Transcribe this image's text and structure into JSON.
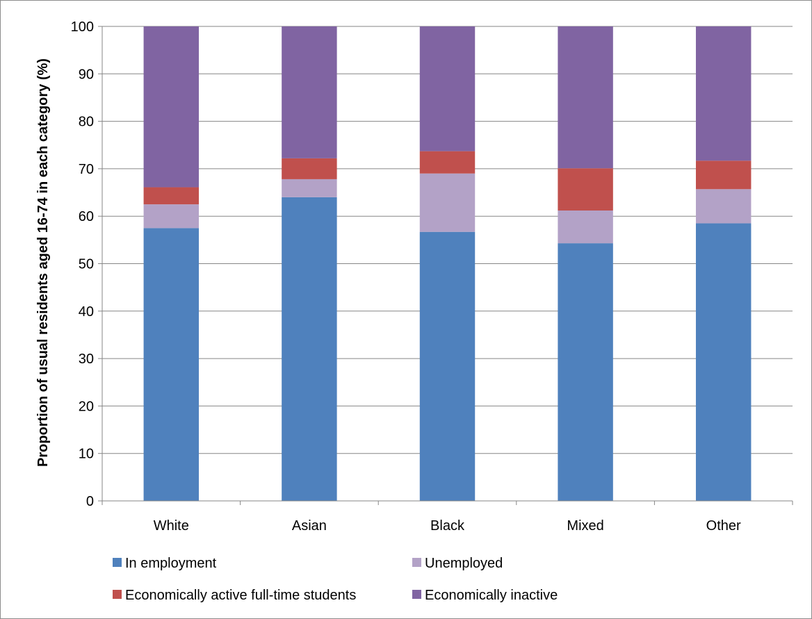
{
  "chart_data": {
    "type": "bar",
    "stacked": true,
    "title": "",
    "xlabel": "",
    "ylabel": "Proportion of usual residents aged 16-74 in each category (%)",
    "ylim": [
      0,
      100
    ],
    "yticks": [
      "0",
      "10",
      "20",
      "30",
      "40",
      "50",
      "60",
      "70",
      "80",
      "90",
      "100"
    ],
    "categories": [
      "White",
      "Asian",
      "Black",
      "Mixed",
      "Other"
    ],
    "grid": true,
    "legend_position": "bottom",
    "series": [
      {
        "name": "In employment",
        "color": "#4F81BD",
        "values": [
          57.5,
          64.0,
          56.7,
          54.3,
          58.5
        ]
      },
      {
        "name": "Unemployed",
        "color": "#B3A2C7",
        "values": [
          5.0,
          3.8,
          12.3,
          6.9,
          7.2
        ]
      },
      {
        "name": "Economically active full-time students",
        "color": "#C0504D",
        "values": [
          3.6,
          4.4,
          4.7,
          8.9,
          6.0
        ]
      },
      {
        "name": "Economically inactive",
        "color": "#8064A2",
        "values": [
          33.9,
          27.8,
          26.3,
          29.9,
          28.3
        ]
      }
    ]
  }
}
